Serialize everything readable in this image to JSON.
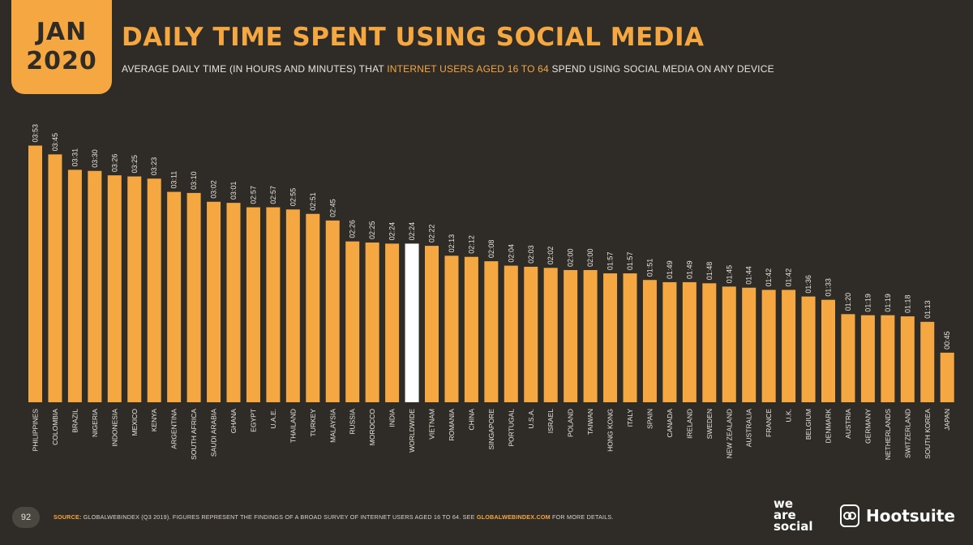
{
  "badge": {
    "month": "JAN",
    "year": "2020"
  },
  "title": "DAILY TIME SPENT USING SOCIAL MEDIA",
  "subtitle": {
    "part1": "AVERAGE DAILY TIME (IN HOURS AND MINUTES) THAT ",
    "highlight": "INTERNET USERS AGED 16 TO 64",
    "part2": " SPEND USING SOCIAL MEDIA ON ANY DEVICE"
  },
  "footer": {
    "page_number": "92",
    "source_label": "SOURCE:",
    "source_text": " GLOBALWEBINDEX (Q3 2019). FIGURES REPRESENT THE FINDINGS OF A BROAD SURVEY OF INTERNET USERS AGED 16 TO 64. SEE ",
    "source_link": "GLOBALWEBINDEX.COM",
    "source_end": " FOR MORE DETAILS."
  },
  "logos": {
    "we": "we",
    "are": "are",
    "social": "social",
    "hootsuite": "Hootsuite"
  },
  "colors": {
    "background": "#2f2c28",
    "bar": "#f5a741",
    "highlight_bar": "#ffffff",
    "label": "#e8e4dc"
  },
  "chart_data": {
    "type": "bar",
    "categories": [
      "PHILIPPINES",
      "COLOMBIA",
      "BRAZIL",
      "NIGERIA",
      "INDONESIA",
      "MEXICO",
      "KENYA",
      "ARGENTINA",
      "SOUTH AFRICA",
      "SAUDI ARABIA",
      "GHANA",
      "EGYPT",
      "U.A.E.",
      "THAILAND",
      "TURKEY",
      "MALAYSIA",
      "RUSSIA",
      "MOROCCO",
      "INDIA",
      "WORLDWIDE",
      "VIETNAM",
      "ROMANIA",
      "CHINA",
      "SINGAPORE",
      "PORTUGAL",
      "U.S.A.",
      "ISRAEL",
      "POLAND",
      "TAIWAN",
      "HONG KONG",
      "ITALY",
      "SPAIN",
      "CANADA",
      "IRELAND",
      "SWEDEN",
      "NEW ZEALAND",
      "AUSTRALIA",
      "FRANCE",
      "U.K.",
      "BELGIUM",
      "DENMARK",
      "AUSTRIA",
      "GERMANY",
      "NETHERLANDS",
      "SWITZERLAND",
      "SOUTH KOREA",
      "JAPAN"
    ],
    "labels": [
      "03:53",
      "03:45",
      "03:31",
      "03:30",
      "03:26",
      "03:25",
      "03:23",
      "03:11",
      "03:10",
      "03:02",
      "03:01",
      "02:57",
      "02:57",
      "02:55",
      "02:51",
      "02:45",
      "02:26",
      "02:25",
      "02:24",
      "02:24",
      "02:22",
      "02:13",
      "02:12",
      "02:08",
      "02:04",
      "02:03",
      "02:02",
      "02:00",
      "02:00",
      "01:57",
      "01:57",
      "01:51",
      "01:49",
      "01:49",
      "01:48",
      "01:45",
      "01:44",
      "01:42",
      "01:42",
      "01:36",
      "01:33",
      "01:20",
      "01:19",
      "01:19",
      "01:18",
      "01:13",
      "00:45"
    ],
    "values_minutes": [
      233,
      225,
      211,
      210,
      206,
      205,
      203,
      191,
      190,
      182,
      181,
      177,
      177,
      175,
      171,
      165,
      146,
      145,
      144,
      144,
      142,
      133,
      132,
      128,
      124,
      123,
      122,
      120,
      120,
      117,
      117,
      111,
      109,
      109,
      108,
      105,
      104,
      102,
      102,
      96,
      93,
      80,
      79,
      79,
      78,
      73,
      45
    ],
    "highlight_category": "WORLDWIDE",
    "ylim": [
      0,
      240
    ]
  }
}
